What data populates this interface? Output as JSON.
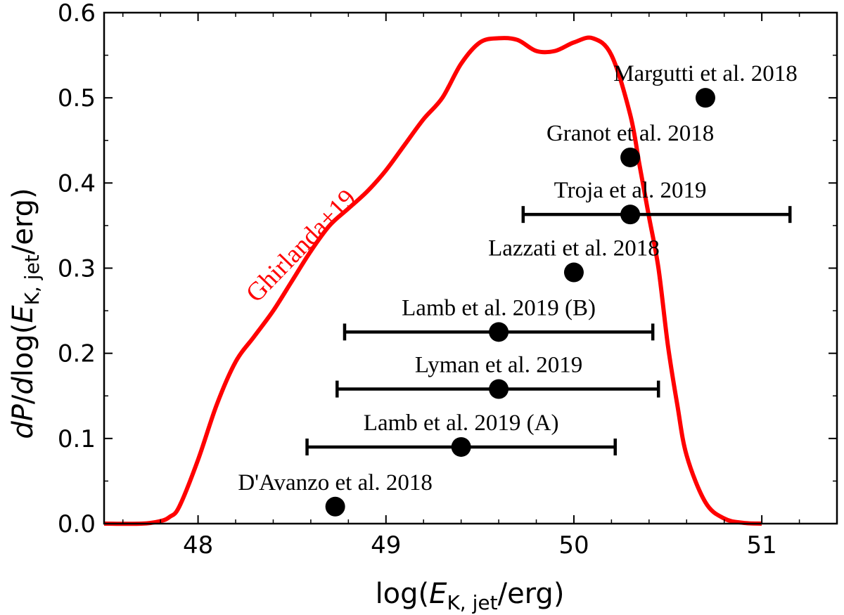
{
  "chart_data": {
    "type": "scatter",
    "xlim": [
      47.5,
      51.4
    ],
    "ylim": [
      0.0,
      0.6
    ],
    "x_ticks": [
      48,
      49,
      50,
      51
    ],
    "y_ticks": [
      0.0,
      0.1,
      0.2,
      0.3,
      0.4,
      0.5,
      0.6
    ],
    "x_tick_labels": [
      "48",
      "49",
      "50",
      "51"
    ],
    "y_tick_labels": [
      "0.0",
      "0.1",
      "0.2",
      "0.3",
      "0.4",
      "0.5",
      "0.6"
    ],
    "xlabel": {
      "pre": "log(",
      "var": "E",
      "sub": "K, jet",
      "post": "/erg)"
    },
    "ylabel": {
      "d1": "d",
      "P": "P",
      "mid": "/",
      "d2": "d",
      "log": "log(",
      "var": "E",
      "sub": "K, jet",
      "post": "/erg)"
    },
    "grid": false,
    "curve": {
      "label": "Ghirlanda+19",
      "color": "#ff0000",
      "x": [
        47.5,
        47.7,
        47.8,
        47.85,
        47.9,
        48.0,
        48.1,
        48.2,
        48.3,
        48.4,
        48.5,
        48.6,
        48.7,
        48.8,
        48.9,
        49.0,
        49.1,
        49.2,
        49.3,
        49.4,
        49.5,
        49.6,
        49.7,
        49.8,
        49.9,
        50.0,
        50.1,
        50.2,
        50.3,
        50.35,
        50.4,
        50.45,
        50.5,
        50.55,
        50.6,
        50.7,
        50.8,
        50.9,
        51.0
      ],
      "y": [
        0.0,
        0.0,
        0.003,
        0.008,
        0.02,
        0.075,
        0.14,
        0.19,
        0.22,
        0.25,
        0.285,
        0.32,
        0.35,
        0.37,
        0.39,
        0.415,
        0.445,
        0.475,
        0.5,
        0.54,
        0.565,
        0.57,
        0.568,
        0.555,
        0.555,
        0.565,
        0.57,
        0.55,
        0.48,
        0.42,
        0.36,
        0.3,
        0.21,
        0.14,
        0.08,
        0.025,
        0.006,
        0.001,
        0.0
      ]
    },
    "points": [
      {
        "label": "Margutti et al. 2018",
        "x": 50.7,
        "y": 0.5,
        "xerr": null
      },
      {
        "label": "Granot et al. 2018",
        "x": 50.3,
        "y": 0.43,
        "xerr": null
      },
      {
        "label": "Troja et al. 2019",
        "x": 50.3,
        "y": 0.363,
        "xerr": [
          49.73,
          51.15
        ]
      },
      {
        "label": "Lazzati et al. 2018",
        "x": 50.0,
        "y": 0.295,
        "xerr": null
      },
      {
        "label": "Lamb et al. 2019 (B)",
        "x": 49.6,
        "y": 0.225,
        "xerr": [
          48.78,
          50.42
        ]
      },
      {
        "label": "Lyman et al. 2019",
        "x": 49.6,
        "y": 0.158,
        "xerr": [
          48.74,
          50.45
        ]
      },
      {
        "label": "Lamb et al. 2019 (A)",
        "x": 49.4,
        "y": 0.09,
        "xerr": [
          48.58,
          50.22
        ]
      },
      {
        "label": "D'Avanzo et al. 2018",
        "x": 48.73,
        "y": 0.02,
        "xerr": null
      }
    ]
  }
}
